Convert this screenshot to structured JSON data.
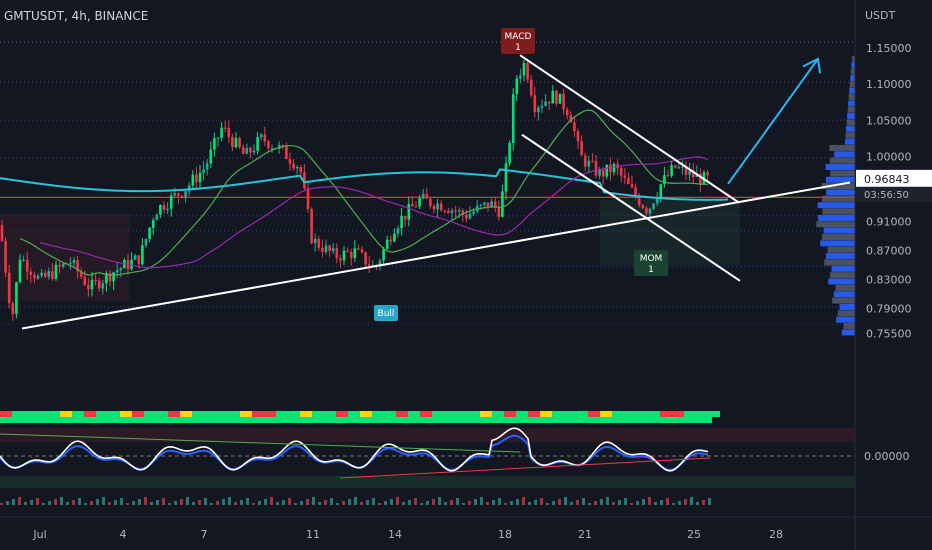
{
  "header": {
    "symbol_title": "GMTUSDT, 4h, BINANCE",
    "currency": "USDT"
  },
  "colors": {
    "background": "#131722",
    "bull_candle": "#22ab94",
    "bull_candle_bright": "#00e676",
    "bear_candle": "#f23645",
    "price_line": "#f23645",
    "ema_blue": "#26c6da",
    "ma_green": "#4caf50",
    "ma_purple": "#9c27b0",
    "trendline": "#ffffff",
    "arrow": "#29b6f6",
    "dotted_level": "#e040fb",
    "volume_profile": "#2962ff"
  },
  "price_badge": {
    "price": "0.96843",
    "countdown": "03:56:50"
  },
  "labels": {
    "macd": "MACD",
    "macd_count": "1",
    "mom": "MOM",
    "mom_count": "1",
    "bull": "Bull"
  },
  "chart_data": [
    {
      "type": "candlestick",
      "y_axis_ticks": [
        "1.15000",
        "1.10000",
        "1.05000",
        "1.00000",
        "0.91000",
        "0.87000",
        "0.83000",
        "0.79000",
        "0.75500"
      ],
      "x_axis_ticks": [
        "Jul",
        "4",
        "7",
        "11",
        "14",
        "18",
        "21",
        "25",
        "28"
      ],
      "ylim": [
        0.745,
        1.17
      ],
      "key_prices": [
        {
          "date": "Jun 30",
          "low": 0.762
        },
        {
          "date": "Jul 7",
          "high": 1.045
        },
        {
          "date": "Jul 13",
          "low": 0.832
        },
        {
          "date": "Jul 18",
          "high": 1.138
        },
        {
          "date": "Jul 23",
          "low": 0.905
        },
        {
          "date": "Jul 25",
          "close": 0.968
        }
      ],
      "last_price": 0.96843
    },
    {
      "type": "line",
      "oscillator": true,
      "y_axis_ticks": [
        "0.00000"
      ]
    }
  ]
}
